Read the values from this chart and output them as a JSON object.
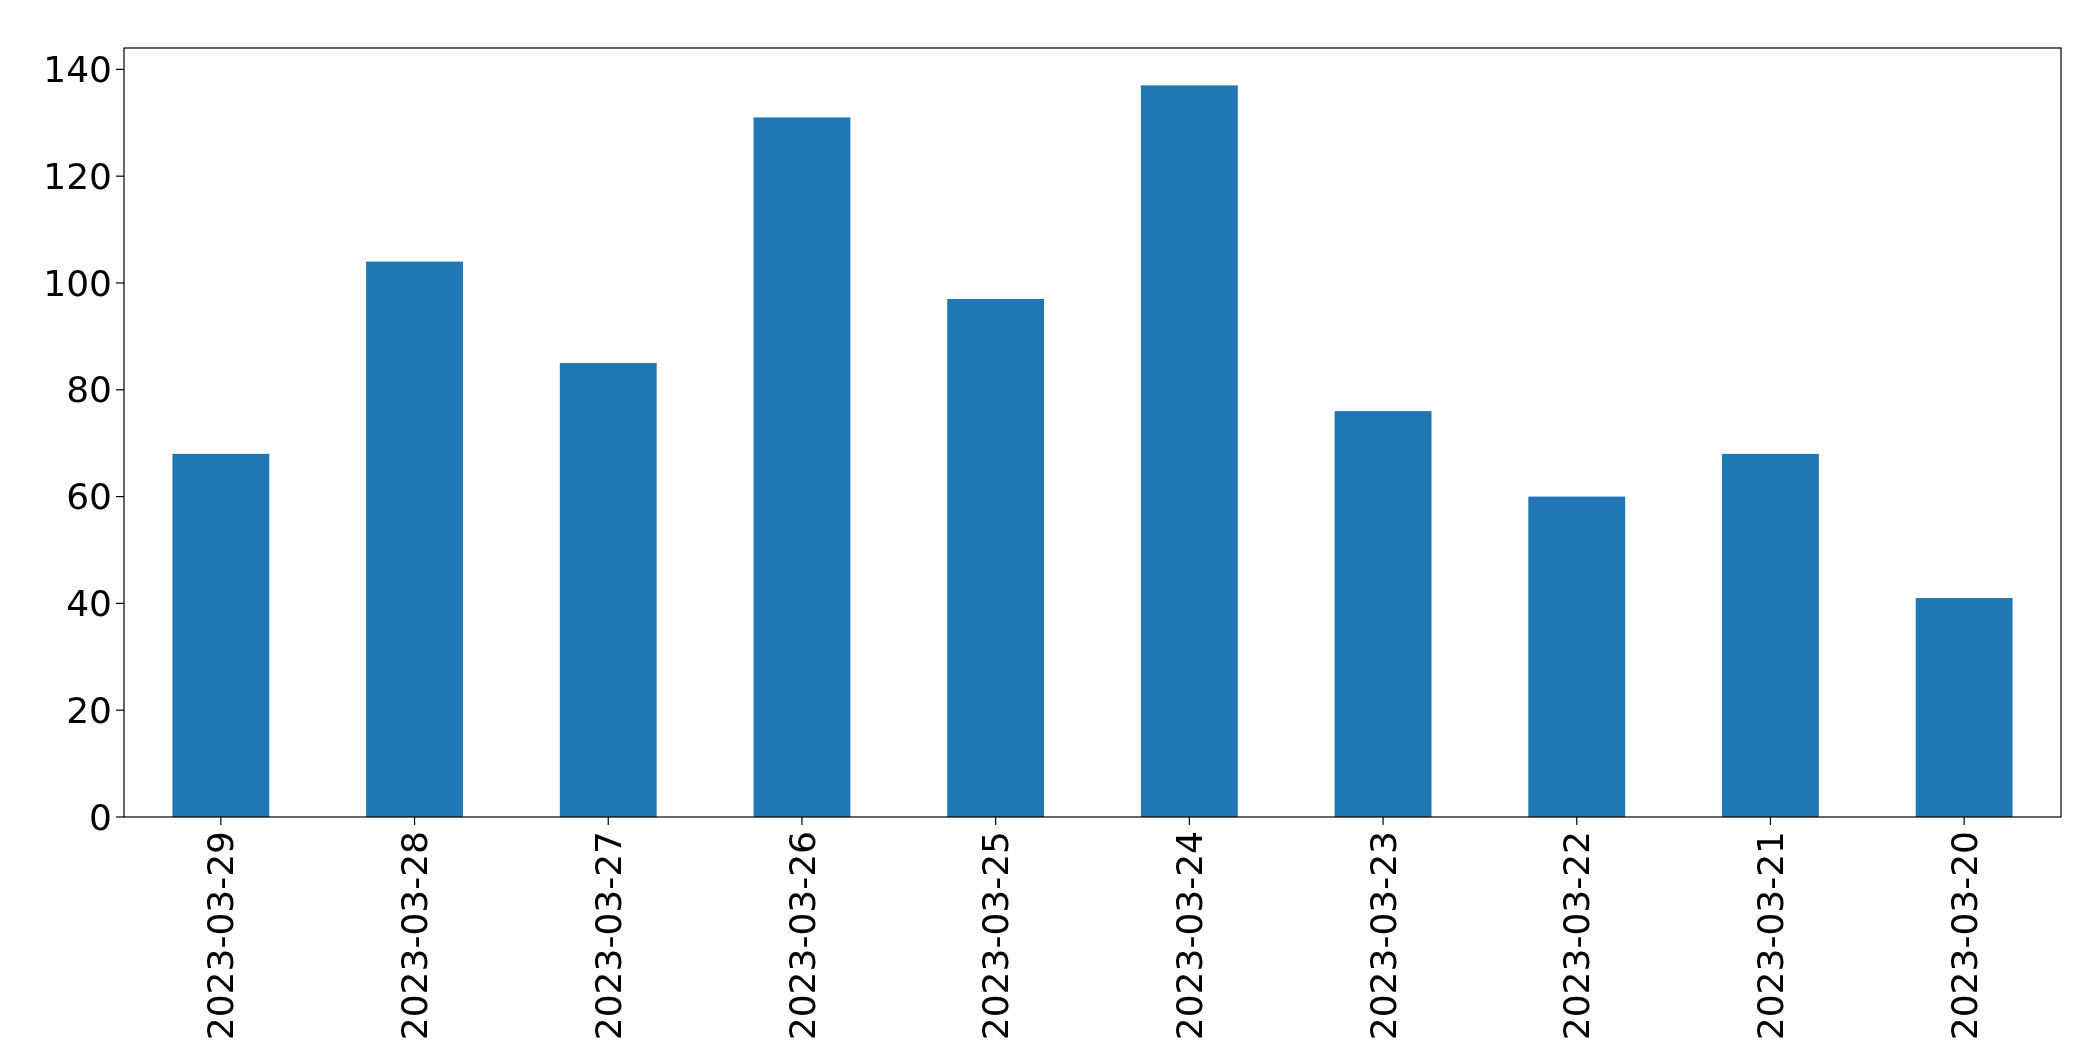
{
  "chart_data": {
    "type": "bar",
    "categories": [
      "2023-03-29",
      "2023-03-28",
      "2023-03-27",
      "2023-03-26",
      "2023-03-25",
      "2023-03-24",
      "2023-03-23",
      "2023-03-22",
      "2023-03-21",
      "2023-03-20"
    ],
    "values": [
      68,
      104,
      85,
      131,
      97,
      137,
      76,
      60,
      68,
      41
    ],
    "color": "#1f77b4",
    "ylim": [
      0,
      144
    ],
    "yticks": [
      0,
      20,
      40,
      60,
      80,
      100,
      120,
      140
    ],
    "grid": false
  }
}
